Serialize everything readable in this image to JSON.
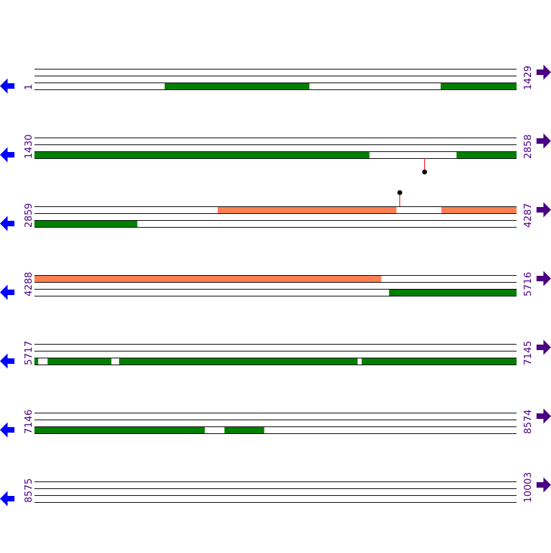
{
  "colors": {
    "line": "#000000",
    "green_feature": "#008000",
    "orange_feature": "#ff7f50",
    "label": "#4b0082",
    "left_arrow": "#0000ff",
    "right_arrow": "#4b0082",
    "lollipop_stem": "#ff0000",
    "lollipop_head": "#000000"
  },
  "icons": {
    "left": "arrow-left-icon",
    "right": "arrow-right-icon"
  },
  "bases_per_row": 1429,
  "rows": [
    {
      "start": "1",
      "end": "1429",
      "features": [
        {
          "track": 2,
          "color": "green",
          "from": 387,
          "to": 815
        },
        {
          "track": 2,
          "color": "green",
          "from": 1205,
          "to": 1429
        }
      ]
    },
    {
      "start": "1430",
      "end": "2858",
      "features": [
        {
          "track": 2,
          "color": "green",
          "from": 1430,
          "to": 2422
        },
        {
          "track": 2,
          "color": "green",
          "from": 2681,
          "to": 2858
        }
      ],
      "markers": [
        {
          "pos": 2585,
          "direction": "down"
        }
      ]
    },
    {
      "start": "2859",
      "end": "4287",
      "features": [
        {
          "track": 0,
          "color": "orange",
          "from": 3402,
          "to": 3931
        },
        {
          "track": 0,
          "color": "orange",
          "from": 4065,
          "to": 4287
        },
        {
          "track": 2,
          "color": "green",
          "from": 2859,
          "to": 3163
        }
      ],
      "markers": [
        {
          "pos": 3941,
          "direction": "up"
        }
      ]
    },
    {
      "start": "4288",
      "end": "5716",
      "features": [
        {
          "track": 0,
          "color": "orange",
          "from": 4288,
          "to": 5315
        },
        {
          "track": 2,
          "color": "green",
          "from": 5339,
          "to": 5716
        }
      ]
    },
    {
      "start": "5717",
      "end": "7145",
      "features": [
        {
          "track": 2,
          "color": "green",
          "from": 5717,
          "to": 5727
        },
        {
          "track": 2,
          "color": "green",
          "from": 5756,
          "to": 5944
        },
        {
          "track": 2,
          "color": "green",
          "from": 5968,
          "to": 6674
        },
        {
          "track": 2,
          "color": "green",
          "from": 6687,
          "to": 7145
        }
      ]
    },
    {
      "start": "7146",
      "end": "8574",
      "features": [
        {
          "track": 2,
          "color": "green",
          "from": 7146,
          "to": 7650
        },
        {
          "track": 2,
          "color": "green",
          "from": 7709,
          "to": 7826
        }
      ]
    },
    {
      "start": "8575",
      "end": "10003",
      "features": []
    }
  ]
}
